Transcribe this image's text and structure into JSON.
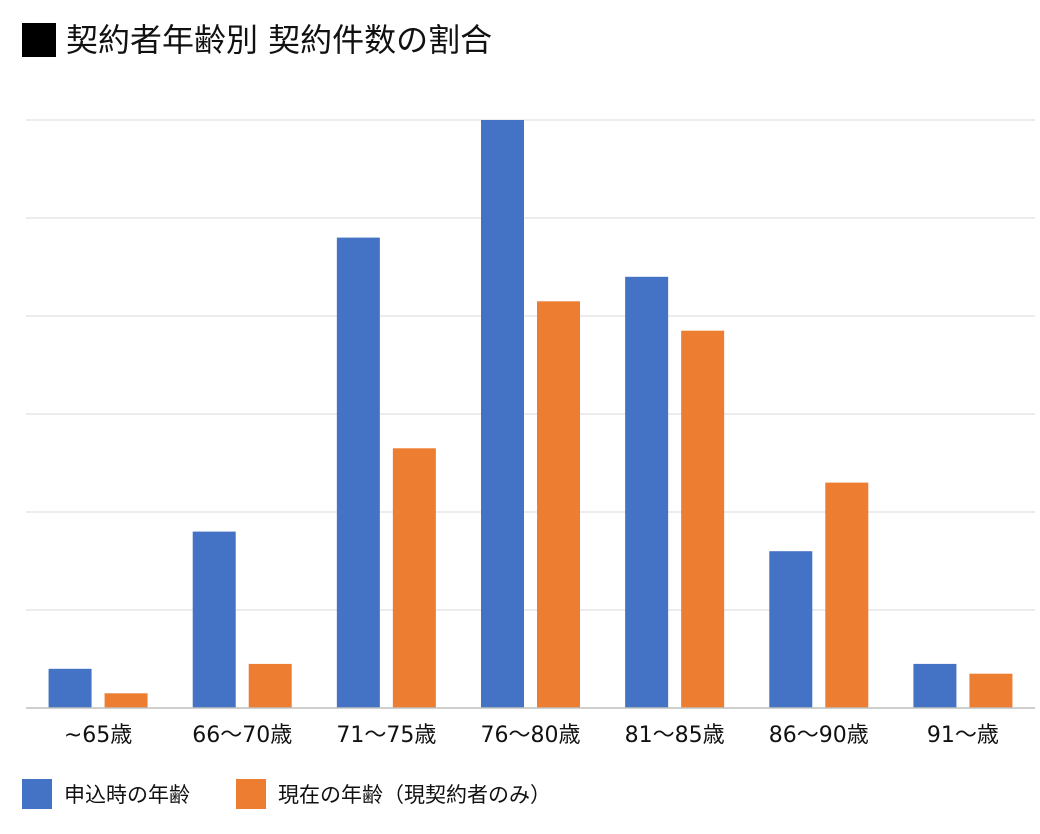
{
  "title_marker": "■",
  "chart_data": {
    "type": "bar",
    "title": "契約者年齢別 契約件数の割合",
    "categories": [
      "~65歳",
      "66〜70歳",
      "71〜75歳",
      "76〜80歳",
      "81〜85歳",
      "86〜90歳",
      "91〜歳"
    ],
    "series": [
      {
        "name": "申込時の年齢",
        "color": "#4472C4",
        "values": [
          0.4,
          1.8,
          4.8,
          6.0,
          4.4,
          1.6,
          0.45
        ]
      },
      {
        "name": "現在の年齢（現契約者のみ）",
        "color": "#ED7D31",
        "values": [
          0.15,
          0.45,
          2.65,
          4.15,
          3.85,
          2.3,
          0.35
        ]
      }
    ],
    "ylim": [
      0,
      6
    ],
    "y_gridlines": 6,
    "y_tick_labels_shown": false,
    "grid": true,
    "legend_position": "bottom-left",
    "xlabel": "",
    "ylabel": ""
  }
}
